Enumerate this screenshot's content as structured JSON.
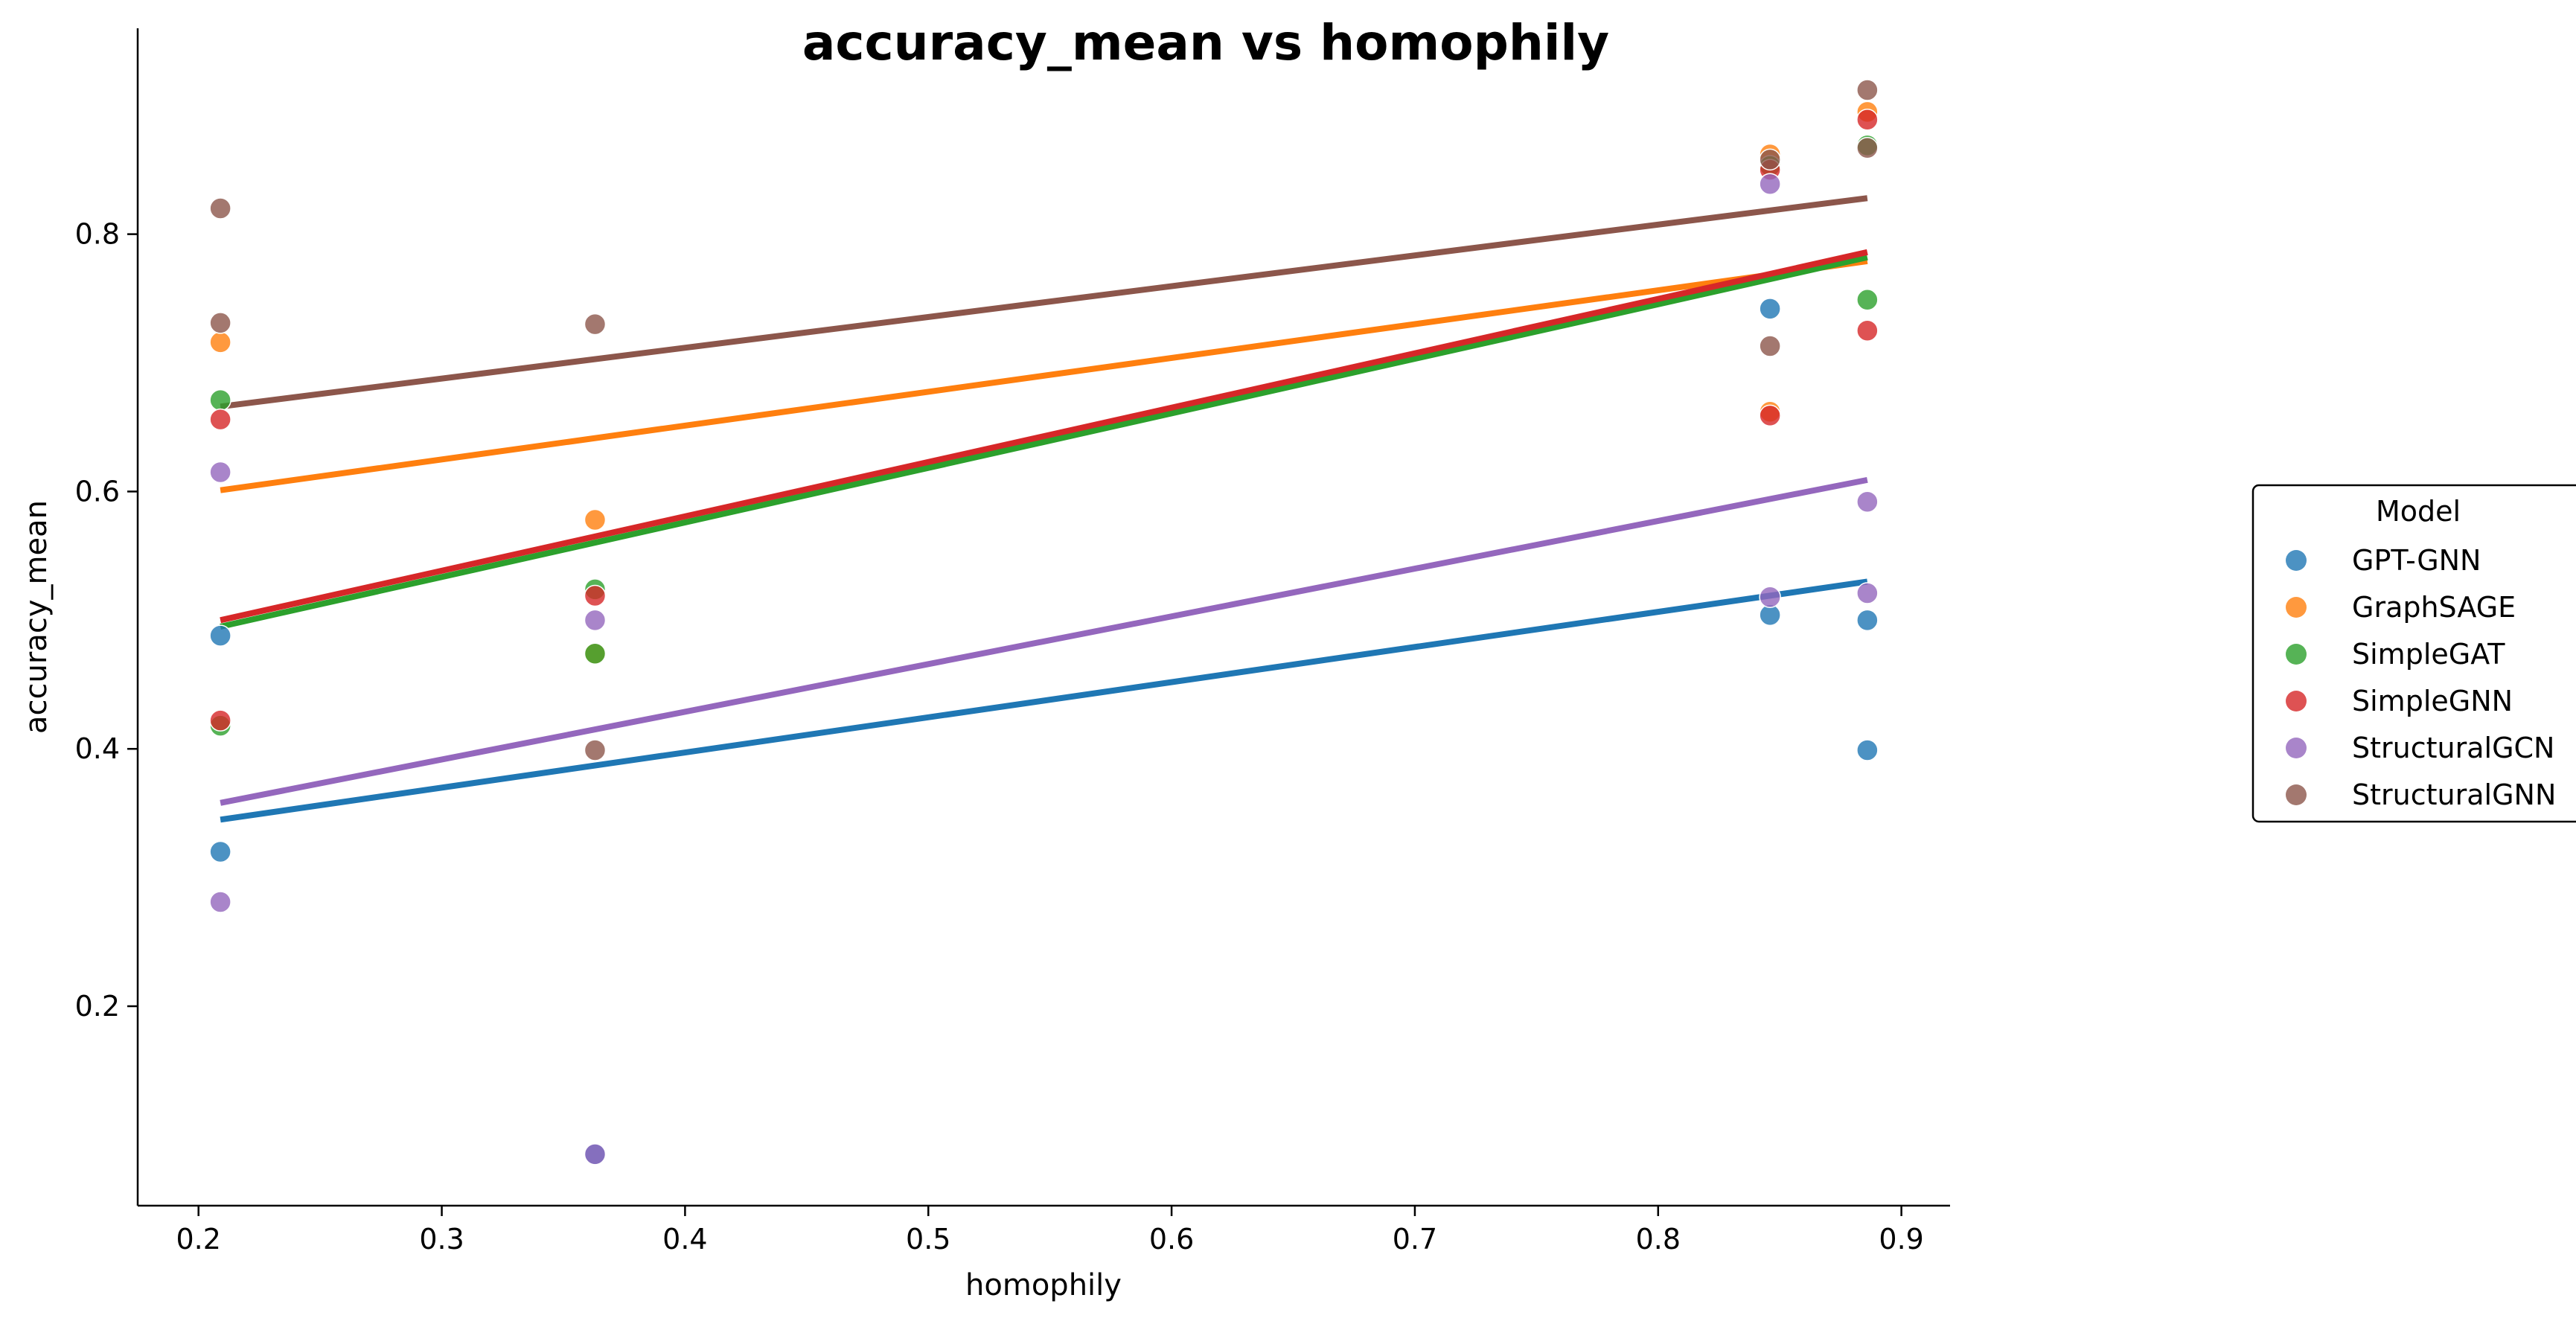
{
  "chart_data": {
    "type": "scatter",
    "title": "accuracy_mean vs homophily",
    "xlabel": "homophily",
    "ylabel": "accuracy_mean",
    "xlim": [
      0.175,
      0.92
    ],
    "ylim": [
      0.045,
      0.96
    ],
    "xticks": [
      "0.2",
      "0.3",
      "0.4",
      "0.5",
      "0.6",
      "0.7",
      "0.8",
      "0.9"
    ],
    "yticks": [
      "0.2",
      "0.4",
      "0.6",
      "0.8"
    ],
    "grid": false,
    "legend": {
      "title": "Model",
      "placement": "right"
    },
    "series": [
      {
        "name": "GPT-GNN",
        "color": "#1f77b4",
        "points": [
          [
            0.209,
            0.488
          ],
          [
            0.209,
            0.32
          ],
          [
            0.363,
            0.085
          ],
          [
            0.846,
            0.742
          ],
          [
            0.846,
            0.504
          ],
          [
            0.886,
            0.5
          ],
          [
            0.886,
            0.399
          ]
        ],
        "trend": [
          [
            0.209,
            0.345
          ],
          [
            0.886,
            0.53
          ]
        ]
      },
      {
        "name": "GraphSAGE",
        "color": "#ff7f0e",
        "points": [
          [
            0.209,
            0.716
          ],
          [
            0.363,
            0.578
          ],
          [
            0.363,
            0.474
          ],
          [
            0.846,
            0.862
          ],
          [
            0.846,
            0.662
          ],
          [
            0.886,
            0.895
          ]
        ],
        "trend": [
          [
            0.209,
            0.601
          ],
          [
            0.886,
            0.779
          ]
        ]
      },
      {
        "name": "SimpleGAT",
        "color": "#2ca02c",
        "points": [
          [
            0.209,
            0.671
          ],
          [
            0.209,
            0.418
          ],
          [
            0.363,
            0.524
          ],
          [
            0.363,
            0.474
          ],
          [
            0.846,
            0.853
          ],
          [
            0.886,
            0.869
          ],
          [
            0.886,
            0.749
          ]
        ],
        "trend": [
          [
            0.209,
            0.495
          ],
          [
            0.886,
            0.782
          ]
        ]
      },
      {
        "name": "SimpleGNN",
        "color": "#d62728",
        "points": [
          [
            0.209,
            0.656
          ],
          [
            0.209,
            0.422
          ],
          [
            0.363,
            0.519
          ],
          [
            0.846,
            0.85
          ],
          [
            0.846,
            0.659
          ],
          [
            0.886,
            0.889
          ],
          [
            0.886,
            0.725
          ]
        ],
        "trend": [
          [
            0.209,
            0.5
          ],
          [
            0.886,
            0.786
          ]
        ]
      },
      {
        "name": "StructuralGCN",
        "color": "#9467bd",
        "points": [
          [
            0.209,
            0.615
          ],
          [
            0.209,
            0.281
          ],
          [
            0.363,
            0.5
          ],
          [
            0.363,
            0.085
          ],
          [
            0.846,
            0.839
          ],
          [
            0.846,
            0.518
          ],
          [
            0.886,
            0.592
          ],
          [
            0.886,
            0.521
          ]
        ],
        "trend": [
          [
            0.209,
            0.358
          ],
          [
            0.886,
            0.609
          ]
        ]
      },
      {
        "name": "StructuralGNN",
        "color": "#8c564b",
        "points": [
          [
            0.209,
            0.82
          ],
          [
            0.209,
            0.731
          ],
          [
            0.363,
            0.73
          ],
          [
            0.363,
            0.399
          ],
          [
            0.846,
            0.858
          ],
          [
            0.846,
            0.713
          ],
          [
            0.886,
            0.912
          ],
          [
            0.886,
            0.867
          ]
        ],
        "trend": [
          [
            0.209,
            0.666
          ],
          [
            0.886,
            0.828
          ]
        ]
      }
    ]
  }
}
